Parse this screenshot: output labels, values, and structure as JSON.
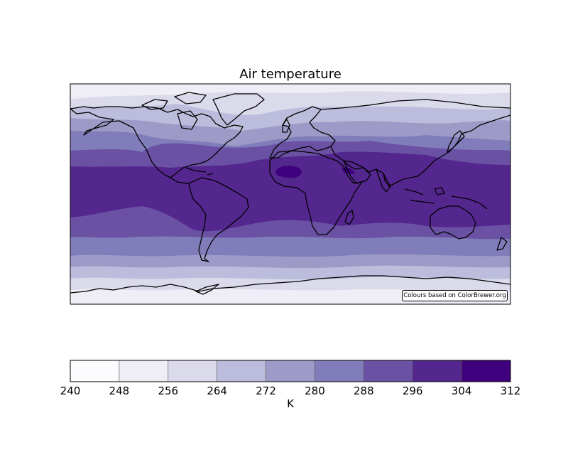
{
  "title": "Air temperature",
  "credit": "Colours based on ColorBrewer.org",
  "colorbar": {
    "label": "K",
    "ticks": [
      "240",
      "248",
      "256",
      "264",
      "272",
      "280",
      "288",
      "296",
      "304",
      "312"
    ],
    "colors": [
      "#fcfbfd",
      "#efedf5",
      "#dadaeb",
      "#bcbddc",
      "#9e9ac8",
      "#807dba",
      "#6a51a3",
      "#54278f",
      "#3f007d"
    ]
  },
  "map_data": {
    "type": "filled-contour",
    "projection": "plate-carree",
    "variable": "air temperature",
    "units": "K",
    "levels": [
      240,
      248,
      256,
      264,
      272,
      280,
      288,
      296,
      304,
      312
    ],
    "coastlines": true
  }
}
